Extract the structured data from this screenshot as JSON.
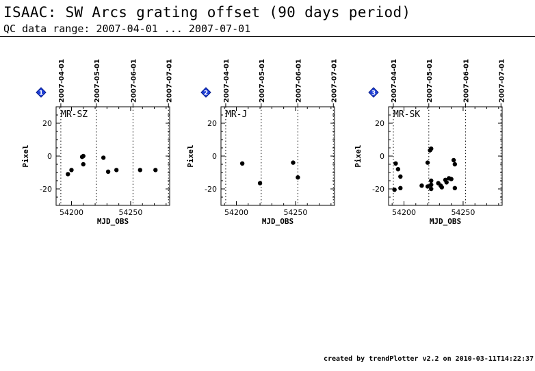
{
  "header": {
    "title": "ISAAC: SW Arcs grating offset (90 days period)",
    "subtitle": "QC data range: 2007-04-01 ... 2007-07-01"
  },
  "footer": {
    "text": "created by trendPlotter v2.2 on 2010-03-11T14:22:37"
  },
  "colors": {
    "marker": "#1f3fd8",
    "marker_text": "#ffffff",
    "points": "#000000"
  },
  "chart_data": [
    {
      "type": "scatter",
      "marker": "1",
      "title": "MR-SZ",
      "xlabel": "MJD_OBS",
      "ylabel": "Pixel",
      "xlim": [
        54187,
        54283
      ],
      "ylim": [
        -30,
        30
      ],
      "xticks": [
        54200,
        54250
      ],
      "yticks": [
        -20,
        0,
        20
      ],
      "date_lines": [
        {
          "x": 54191,
          "label": "2007-04-01"
        },
        {
          "x": 54221,
          "label": "2007-05-01"
        },
        {
          "x": 54252,
          "label": "2007-06-01"
        },
        {
          "x": 54282,
          "label": "2007-07-01"
        }
      ],
      "points": [
        {
          "x": 54197,
          "y": -11
        },
        {
          "x": 54200,
          "y": -8.5
        },
        {
          "x": 54209,
          "y": -0.5
        },
        {
          "x": 54210,
          "y": 0
        },
        {
          "x": 54210,
          "y": -5
        },
        {
          "x": 54227,
          "y": -1
        },
        {
          "x": 54231,
          "y": -9.5
        },
        {
          "x": 54238,
          "y": -8.5
        },
        {
          "x": 54258,
          "y": -8.5
        },
        {
          "x": 54271,
          "y": -8.5
        }
      ]
    },
    {
      "type": "scatter",
      "marker": "2",
      "title": "MR-J",
      "xlabel": "MJD_OBS",
      "ylabel": "Pixel",
      "xlim": [
        54187,
        54283
      ],
      "ylim": [
        -30,
        30
      ],
      "xticks": [
        54200,
        54250
      ],
      "yticks": [
        -20,
        0,
        20
      ],
      "date_lines": [
        {
          "x": 54191,
          "label": "2007-04-01"
        },
        {
          "x": 54221,
          "label": "2007-05-01"
        },
        {
          "x": 54252,
          "label": "2007-06-01"
        },
        {
          "x": 54282,
          "label": "2007-07-01"
        }
      ],
      "points": [
        {
          "x": 54205,
          "y": -4.5
        },
        {
          "x": 54220,
          "y": -16.5
        },
        {
          "x": 54248,
          "y": -4
        },
        {
          "x": 54252,
          "y": -13
        }
      ]
    },
    {
      "type": "scatter",
      "marker": "3",
      "title": "MR-SK",
      "xlabel": "MJD_OBS",
      "ylabel": "Pixel",
      "xlim": [
        54187,
        54283
      ],
      "ylim": [
        -30,
        30
      ],
      "xticks": [
        54200,
        54250
      ],
      "yticks": [
        -20,
        0,
        20
      ],
      "date_lines": [
        {
          "x": 54191,
          "label": "2007-04-01"
        },
        {
          "x": 54221,
          "label": "2007-05-01"
        },
        {
          "x": 54252,
          "label": "2007-06-01"
        },
        {
          "x": 54282,
          "label": "2007-07-01"
        }
      ],
      "points": [
        {
          "x": 54192,
          "y": -20.5
        },
        {
          "x": 54193,
          "y": -4.5
        },
        {
          "x": 54195,
          "y": -8
        },
        {
          "x": 54197,
          "y": -12.5
        },
        {
          "x": 54197,
          "y": -19.5
        },
        {
          "x": 54215,
          "y": -18
        },
        {
          "x": 54220,
          "y": -4
        },
        {
          "x": 54220,
          "y": -18.5
        },
        {
          "x": 54222,
          "y": 3.5
        },
        {
          "x": 54223,
          "y": 4.5
        },
        {
          "x": 54223,
          "y": -15
        },
        {
          "x": 54223,
          "y": -17.5
        },
        {
          "x": 54223,
          "y": -20
        },
        {
          "x": 54229,
          "y": -16.5
        },
        {
          "x": 54231,
          "y": -18
        },
        {
          "x": 54232,
          "y": -19
        },
        {
          "x": 54235,
          "y": -14.5
        },
        {
          "x": 54236,
          "y": -16
        },
        {
          "x": 54238,
          "y": -13.5
        },
        {
          "x": 54240,
          "y": -14
        },
        {
          "x": 54242,
          "y": -2.5
        },
        {
          "x": 54243,
          "y": -5
        },
        {
          "x": 54243,
          "y": -19.5
        }
      ]
    }
  ]
}
